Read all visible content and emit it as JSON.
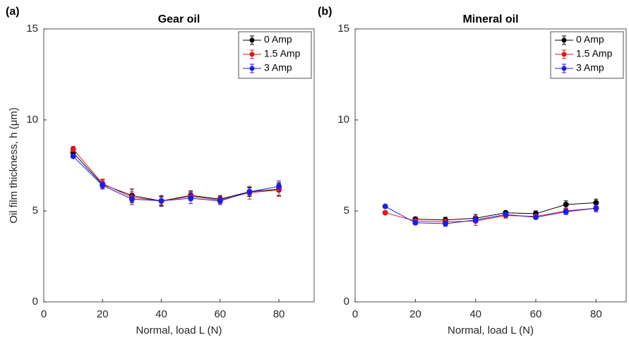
{
  "chart_data": [
    {
      "type": "line",
      "panel_label": "(a)",
      "title": "Gear oil",
      "xlabel": "Normal, load L (N)",
      "ylabel": "Oil film thickness, h (μm)",
      "x": [
        10,
        20,
        30,
        40,
        50,
        60,
        70,
        80
      ],
      "series": [
        {
          "name": "0 Amp",
          "color": "#000000",
          "values": [
            8.2,
            6.45,
            5.85,
            5.55,
            5.85,
            5.65,
            6.05,
            6.2
          ],
          "errors": [
            0.2,
            0.25,
            0.35,
            0.25,
            0.25,
            0.2,
            0.25,
            0.35
          ]
        },
        {
          "name": "1.5 Amp",
          "color": "#e01818",
          "values": [
            8.4,
            6.5,
            5.75,
            5.55,
            5.8,
            5.6,
            6.0,
            6.15
          ],
          "errors": [
            0.15,
            0.25,
            0.3,
            0.2,
            0.25,
            0.2,
            0.35,
            0.35
          ]
        },
        {
          "name": "3 Amp",
          "color": "#1c1cf0",
          "values": [
            8.0,
            6.4,
            5.65,
            5.55,
            5.7,
            5.55,
            6.05,
            6.35
          ],
          "errors": [
            0.1,
            0.2,
            0.3,
            0.3,
            0.3,
            0.2,
            0.2,
            0.3
          ]
        }
      ],
      "xlim": [
        0,
        92
      ],
      "ylim": [
        0,
        15
      ],
      "xticks": [
        0,
        20,
        40,
        60,
        80
      ],
      "yticks": [
        0,
        5,
        10,
        15
      ],
      "legend": "upper right"
    },
    {
      "type": "line",
      "panel_label": "(b)",
      "title": "Mineral oil",
      "xlabel": "Normal, load L (N)",
      "x": [
        10,
        20,
        30,
        40,
        50,
        60,
        70,
        80
      ],
      "series": [
        {
          "name": "0 Amp",
          "color": "#000000",
          "values": [
            null,
            4.55,
            4.5,
            4.6,
            4.9,
            4.85,
            5.35,
            5.45
          ],
          "errors": [
            null,
            0.1,
            0.15,
            0.2,
            0.1,
            0.15,
            0.2,
            0.2
          ]
        },
        {
          "name": "1.5 Amp",
          "color": "#e01818",
          "values": [
            4.9,
            4.45,
            4.4,
            4.45,
            4.75,
            4.7,
            5.0,
            5.15
          ],
          "errors": [
            0.05,
            0.1,
            0.15,
            0.25,
            0.15,
            0.1,
            0.15,
            0.15
          ]
        },
        {
          "name": "3 Amp",
          "color": "#1c1cf0",
          "values": [
            5.25,
            4.35,
            4.3,
            4.5,
            4.8,
            4.65,
            4.95,
            5.15
          ],
          "errors": [
            0.05,
            0.1,
            0.15,
            0.15,
            0.1,
            0.1,
            0.15,
            0.2
          ]
        }
      ],
      "xlim": [
        0,
        90
      ],
      "ylim": [
        0,
        15
      ],
      "xticks": [
        0,
        20,
        40,
        60,
        80
      ],
      "yticks": [
        0,
        5,
        10,
        15
      ],
      "legend": "upper right"
    }
  ]
}
